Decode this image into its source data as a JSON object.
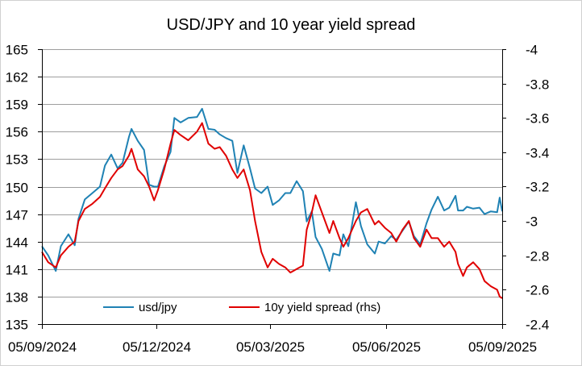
{
  "chart_data": {
    "type": "line",
    "title": "USD/JPY and 10 year yield spread",
    "xlabel": "",
    "ylabel": "",
    "y_left_ticks": [
      "165",
      "162",
      "159",
      "156",
      "153",
      "150",
      "147",
      "144",
      "141",
      "138",
      "135"
    ],
    "y_right_ticks": [
      "-4",
      "-3.8",
      "-3.6",
      "-3.4",
      "-3.2",
      "-3",
      "-2.8",
      "-2.6",
      "-2.4"
    ],
    "x_ticks": [
      "05/09/2024",
      "05/12/2024",
      "05/03/2025",
      "05/06/2025",
      "05/09/2025"
    ],
    "ylim_left": [
      135,
      165
    ],
    "ylim_right": [
      -2.4,
      -4
    ],
    "grid": true,
    "legend_position": "bottom",
    "series": [
      {
        "name": "usd/jpy",
        "axis": "left",
        "color": "#1f82b4",
        "points": [
          [
            "2024-09-05",
            143.5
          ],
          [
            "2024-09-10",
            142.5
          ],
          [
            "2024-09-16",
            140.8
          ],
          [
            "2024-09-20",
            143.5
          ],
          [
            "2024-09-26",
            144.8
          ],
          [
            "2024-10-01",
            143.6
          ],
          [
            "2024-10-04",
            146.5
          ],
          [
            "2024-10-09",
            148.6
          ],
          [
            "2024-10-15",
            149.3
          ],
          [
            "2024-10-21",
            150.0
          ],
          [
            "2024-10-25",
            152.3
          ],
          [
            "2024-10-30",
            153.5
          ],
          [
            "2024-11-04",
            152.0
          ],
          [
            "2024-11-08",
            152.6
          ],
          [
            "2024-11-13",
            155.4
          ],
          [
            "2024-11-15",
            156.3
          ],
          [
            "2024-11-20",
            155.0
          ],
          [
            "2024-11-25",
            154.0
          ],
          [
            "2024-11-29",
            150.2
          ],
          [
            "2024-12-03",
            150.0
          ],
          [
            "2024-12-06",
            150.0
          ],
          [
            "2024-12-11",
            152.2
          ],
          [
            "2024-12-16",
            153.8
          ],
          [
            "2024-12-19",
            157.5
          ],
          [
            "2024-12-24",
            157.0
          ],
          [
            "2024-12-30",
            157.5
          ],
          [
            "2025-01-06",
            157.6
          ],
          [
            "2025-01-10",
            158.5
          ],
          [
            "2025-01-15",
            156.3
          ],
          [
            "2025-01-20",
            156.2
          ],
          [
            "2025-01-24",
            155.7
          ],
          [
            "2025-01-29",
            155.3
          ],
          [
            "2025-02-03",
            155.0
          ],
          [
            "2025-02-07",
            151.5
          ],
          [
            "2025-02-12",
            154.5
          ],
          [
            "2025-02-17",
            152.0
          ],
          [
            "2025-02-21",
            149.8
          ],
          [
            "2025-02-26",
            149.3
          ],
          [
            "2025-03-03",
            150.0
          ],
          [
            "2025-03-07",
            148.0
          ],
          [
            "2025-03-12",
            148.5
          ],
          [
            "2025-03-17",
            149.3
          ],
          [
            "2025-03-21",
            149.3
          ],
          [
            "2025-03-26",
            150.6
          ],
          [
            "2025-03-31",
            149.5
          ],
          [
            "2025-04-03",
            146.2
          ],
          [
            "2025-04-07",
            147.3
          ],
          [
            "2025-04-10",
            144.5
          ],
          [
            "2025-04-15",
            143.2
          ],
          [
            "2025-04-21",
            140.8
          ],
          [
            "2025-04-24",
            142.7
          ],
          [
            "2025-04-29",
            142.5
          ],
          [
            "2025-05-02",
            144.8
          ],
          [
            "2025-05-06",
            143.5
          ],
          [
            "2025-05-12",
            148.3
          ],
          [
            "2025-05-16",
            145.7
          ],
          [
            "2025-05-21",
            143.7
          ],
          [
            "2025-05-27",
            142.7
          ],
          [
            "2025-05-30",
            144.0
          ],
          [
            "2025-06-04",
            143.8
          ],
          [
            "2025-06-09",
            144.6
          ],
          [
            "2025-06-13",
            144.2
          ],
          [
            "2025-06-18",
            145.2
          ],
          [
            "2025-06-23",
            146.2
          ],
          [
            "2025-06-27",
            144.6
          ],
          [
            "2025-07-02",
            143.7
          ],
          [
            "2025-07-07",
            146.0
          ],
          [
            "2025-07-11",
            147.5
          ],
          [
            "2025-07-16",
            148.9
          ],
          [
            "2025-07-21",
            147.4
          ],
          [
            "2025-07-25",
            147.7
          ],
          [
            "2025-07-30",
            149.0
          ],
          [
            "2025-08-01",
            147.4
          ],
          [
            "2025-08-05",
            147.4
          ],
          [
            "2025-08-08",
            147.8
          ],
          [
            "2025-08-13",
            147.6
          ],
          [
            "2025-08-18",
            147.7
          ],
          [
            "2025-08-22",
            147.0
          ],
          [
            "2025-08-27",
            147.3
          ],
          [
            "2025-09-01",
            147.2
          ],
          [
            "2025-09-03",
            148.8
          ],
          [
            "2025-09-05",
            147.3
          ]
        ]
      },
      {
        "name": "10y yield spread (rhs)",
        "axis": "right",
        "color": "#e00000",
        "points": [
          [
            "2024-09-05",
            -2.82
          ],
          [
            "2024-09-10",
            -2.76
          ],
          [
            "2024-09-16",
            -2.73
          ],
          [
            "2024-09-20",
            -2.8
          ],
          [
            "2024-09-26",
            -2.85
          ],
          [
            "2024-10-01",
            -2.88
          ],
          [
            "2024-10-04",
            -3.0
          ],
          [
            "2024-10-09",
            -3.07
          ],
          [
            "2024-10-15",
            -3.1
          ],
          [
            "2024-10-21",
            -3.14
          ],
          [
            "2024-10-25",
            -3.19
          ],
          [
            "2024-10-30",
            -3.25
          ],
          [
            "2024-11-04",
            -3.3
          ],
          [
            "2024-11-08",
            -3.32
          ],
          [
            "2024-11-13",
            -3.38
          ],
          [
            "2024-11-15",
            -3.42
          ],
          [
            "2024-11-20",
            -3.3
          ],
          [
            "2024-11-25",
            -3.26
          ],
          [
            "2024-11-29",
            -3.2
          ],
          [
            "2024-12-03",
            -3.12
          ],
          [
            "2024-12-06",
            -3.18
          ],
          [
            "2024-12-11",
            -3.3
          ],
          [
            "2024-12-16",
            -3.45
          ],
          [
            "2024-12-19",
            -3.53
          ],
          [
            "2024-12-24",
            -3.5
          ],
          [
            "2024-12-30",
            -3.47
          ],
          [
            "2025-01-06",
            -3.52
          ],
          [
            "2025-01-10",
            -3.57
          ],
          [
            "2025-01-15",
            -3.45
          ],
          [
            "2025-01-20",
            -3.42
          ],
          [
            "2025-01-24",
            -3.43
          ],
          [
            "2025-01-29",
            -3.38
          ],
          [
            "2025-02-03",
            -3.3
          ],
          [
            "2025-02-07",
            -3.25
          ],
          [
            "2025-02-12",
            -3.3
          ],
          [
            "2025-02-17",
            -3.18
          ],
          [
            "2025-02-21",
            -3.0
          ],
          [
            "2025-02-26",
            -2.82
          ],
          [
            "2025-03-03",
            -2.73
          ],
          [
            "2025-03-07",
            -2.78
          ],
          [
            "2025-03-12",
            -2.75
          ],
          [
            "2025-03-17",
            -2.73
          ],
          [
            "2025-03-21",
            -2.7
          ],
          [
            "2025-03-26",
            -2.72
          ],
          [
            "2025-03-31",
            -2.74
          ],
          [
            "2025-04-03",
            -2.95
          ],
          [
            "2025-04-07",
            -3.05
          ],
          [
            "2025-04-10",
            -3.15
          ],
          [
            "2025-04-15",
            -3.05
          ],
          [
            "2025-04-21",
            -2.93
          ],
          [
            "2025-04-24",
            -3.0
          ],
          [
            "2025-04-29",
            -2.9
          ],
          [
            "2025-05-02",
            -2.85
          ],
          [
            "2025-05-06",
            -2.9
          ],
          [
            "2025-05-12",
            -3.0
          ],
          [
            "2025-05-16",
            -3.05
          ],
          [
            "2025-05-21",
            -3.07
          ],
          [
            "2025-05-27",
            -2.98
          ],
          [
            "2025-05-30",
            -3.0
          ],
          [
            "2025-06-04",
            -2.96
          ],
          [
            "2025-06-09",
            -2.93
          ],
          [
            "2025-06-13",
            -2.88
          ],
          [
            "2025-06-18",
            -2.95
          ],
          [
            "2025-06-23",
            -3.0
          ],
          [
            "2025-06-27",
            -2.9
          ],
          [
            "2025-07-02",
            -2.85
          ],
          [
            "2025-07-07",
            -2.95
          ],
          [
            "2025-07-11",
            -2.9
          ],
          [
            "2025-07-16",
            -2.9
          ],
          [
            "2025-07-21",
            -2.85
          ],
          [
            "2025-07-25",
            -2.88
          ],
          [
            "2025-07-30",
            -2.82
          ],
          [
            "2025-08-01",
            -2.75
          ],
          [
            "2025-08-05",
            -2.68
          ],
          [
            "2025-08-08",
            -2.73
          ],
          [
            "2025-08-13",
            -2.76
          ],
          [
            "2025-08-18",
            -2.72
          ],
          [
            "2025-08-22",
            -2.65
          ],
          [
            "2025-08-27",
            -2.62
          ],
          [
            "2025-09-01",
            -2.6
          ],
          [
            "2025-09-03",
            -2.56
          ],
          [
            "2025-09-05",
            -2.55
          ]
        ]
      }
    ]
  }
}
